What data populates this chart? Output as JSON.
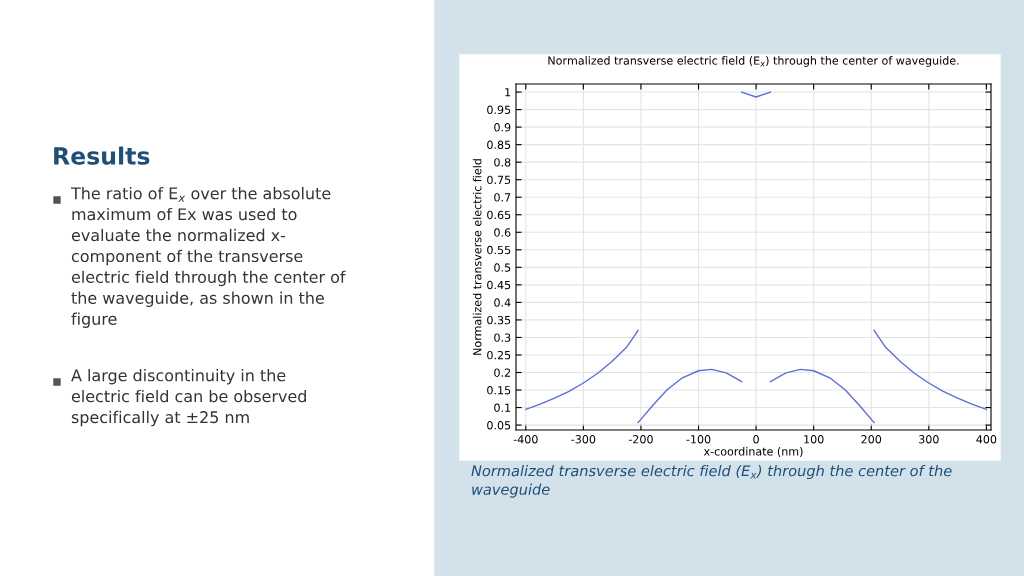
{
  "chart_data": {
    "type": "line",
    "title": "Normalized transverse electric field (E$_{x}$) through the center of waveguide.",
    "xlabel": "x-coordinate (nm)",
    "ylabel": "Normalized transverse electric field",
    "series": [
      {
        "color": "#5b6fd6",
        "x": [
          -400,
          -375,
          -350,
          -325,
          -300,
          -275,
          -250,
          -225,
          -205
        ],
        "values": [
          0.095,
          0.11,
          0.127,
          0.146,
          0.17,
          0.198,
          0.232,
          0.272,
          0.32
        ]
      },
      {
        "color": "#5b6fd6",
        "x": [
          -205,
          -180,
          -155,
          -128,
          -100,
          -77,
          -52,
          -25
        ],
        "values": [
          0.057,
          0.105,
          0.15,
          0.185,
          0.205,
          0.209,
          0.199,
          0.174
        ]
      },
      {
        "color": "#5b6fd6",
        "x": [
          -25,
          0,
          25
        ],
        "values": [
          1.0,
          0.986,
          1.0
        ]
      },
      {
        "color": "#5b6fd6",
        "x": [
          25,
          52,
          77,
          100,
          128,
          155,
          180,
          205
        ],
        "values": [
          0.174,
          0.199,
          0.209,
          0.205,
          0.185,
          0.15,
          0.105,
          0.057
        ]
      },
      {
        "color": "#5b6fd6",
        "x": [
          205,
          225,
          250,
          275,
          300,
          325,
          350,
          375,
          400
        ],
        "values": [
          0.32,
          0.272,
          0.232,
          0.198,
          0.17,
          0.146,
          0.127,
          0.11,
          0.095
        ]
      }
    ],
    "xlim": [
      -417,
      408
    ],
    "xticks": [
      -400,
      -300,
      -200,
      -100,
      0,
      100,
      200,
      300,
      400
    ],
    "ylim": [
      0.036,
      1.023
    ],
    "yticks": [
      0.05,
      0.1,
      0.15,
      0.2,
      0.25,
      0.3,
      0.35,
      0.4,
      0.45,
      0.5,
      0.55,
      0.6,
      0.65,
      0.7,
      0.75,
      0.8,
      0.85,
      0.9,
      0.95,
      1
    ],
    "grid": true,
    "line_style": "solid",
    "annotations": [
      "Results",
      "The ratio of E$_{x}$ over the absolute\nmaximum of Ex was used to\nevaluate the normalized x-\ncomponent of the transverse\nelectric field through the center of\nthe waveguide, as shown in the\nfigure",
      "A large discontinuity in the\nelectric field can be observed\nspecifically at ±25 nm",
      "Normalized transverse electric field (E$_{x}$) through the center of the\nwaveguide"
    ]
  }
}
